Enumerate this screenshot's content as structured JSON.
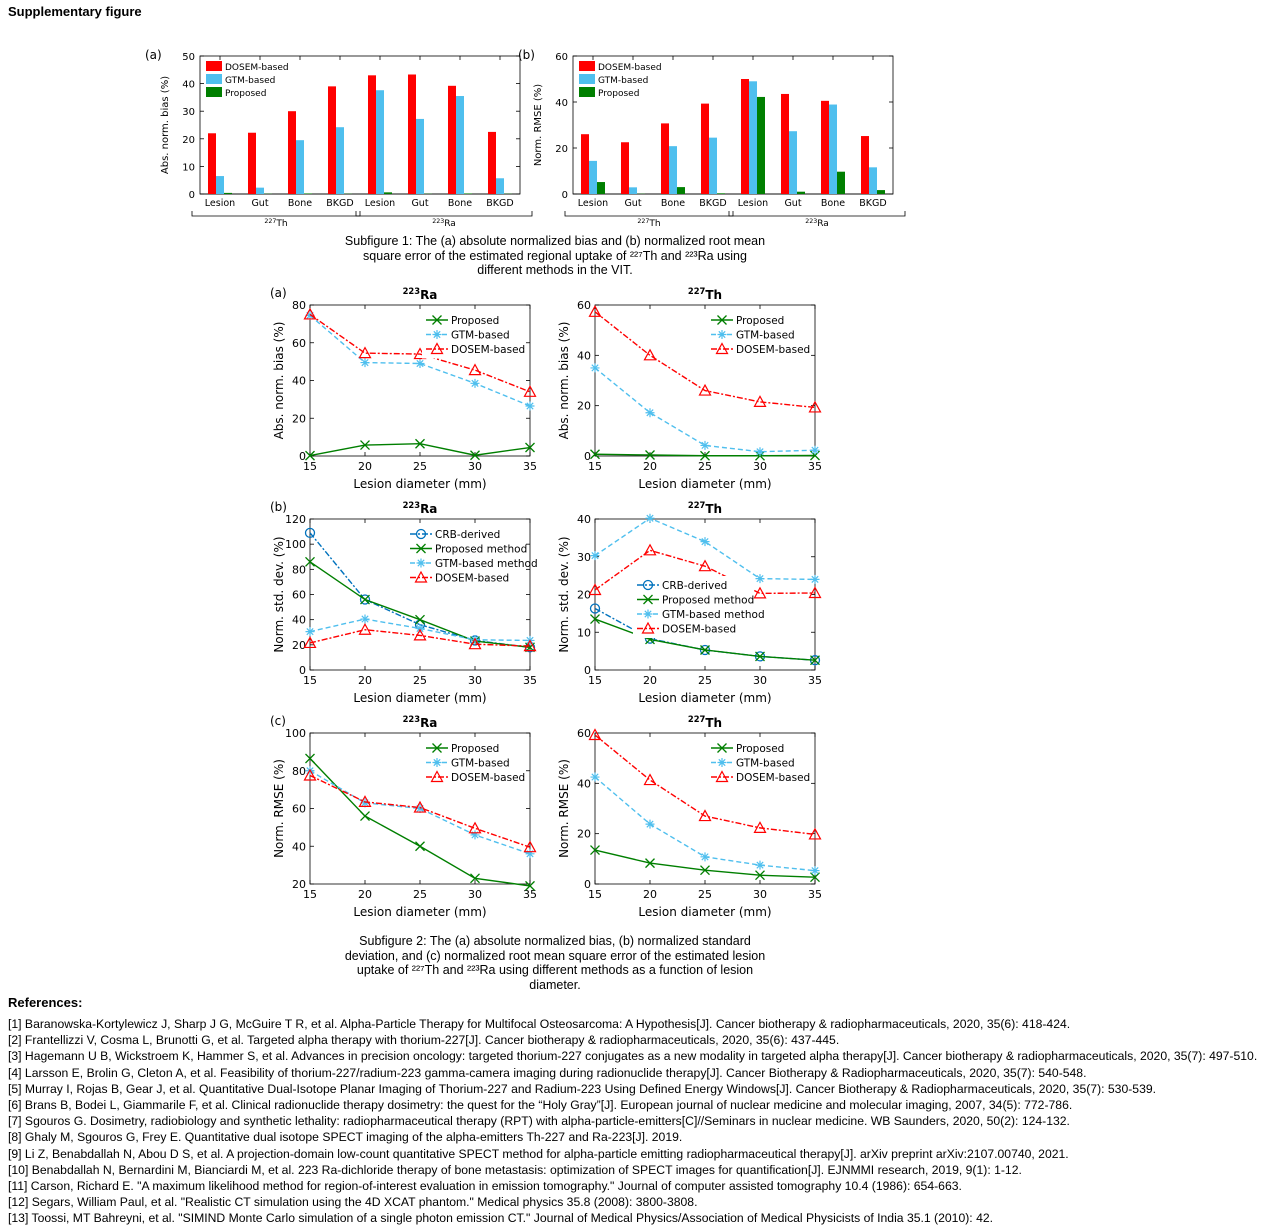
{
  "page": {
    "heading": "Supplementary figure",
    "caption1_lines": [
      "Subfigure 1: The (a) absolute normalized bias and (b) normalized root mean",
      "square error of the estimated regional uptake of ²²⁷Th and ²²³Ra using",
      "different methods in the VIT."
    ],
    "caption2_lines": [
      "Subfigure 2: The (a) absolute normalized bias, (b) normalized standard",
      "deviation, and (c) normalized root mean square error of the estimated lesion",
      "uptake of ²²⁷Th and ²²³Ra using different methods as a function of lesion",
      "diameter."
    ],
    "references_heading": "References:",
    "references": [
      "[1] Baranowska-Kortylewicz J, Sharp J G, McGuire T R, et al. Alpha-Particle Therapy for Multifocal Osteosarcoma: A Hypothesis[J]. Cancer biotherapy & radiopharmaceuticals, 2020, 35(6): 418-424.",
      "[2] Frantellizzi V, Cosma L, Brunotti G, et al. Targeted alpha therapy with thorium-227[J]. Cancer biotherapy & radiopharmaceuticals, 2020, 35(6): 437-445.",
      "[3] Hagemann U B, Wickstroem K, Hammer S, et al. Advances in precision oncology: targeted thorium-227 conjugates as a new modality in targeted alpha therapy[J]. Cancer biotherapy & radiopharmaceuticals, 2020, 35(7): 497-510.",
      "[4] Larsson E, Brolin G, Cleton A, et al. Feasibility of thorium-227/radium-223 gamma-camera imaging during radionuclide therapy[J]. Cancer Biotherapy & Radiopharmaceuticals, 2020, 35(7): 540-548.",
      "[5] Murray I, Rojas B, Gear J, et al. Quantitative Dual-Isotope Planar Imaging of Thorium-227 and Radium-223 Using Defined Energy Windows[J]. Cancer Biotherapy & Radiopharmaceuticals, 2020, 35(7): 530-539.",
      "[6] Brans B, Bodei L, Giammarile F, et al. Clinical radionuclide therapy dosimetry: the quest for the “Holy Gray”[J]. European journal of nuclear medicine and molecular imaging, 2007, 34(5): 772-786.",
      "[7] Sgouros G. Dosimetry, radiobiology and synthetic lethality: radiopharmaceutical therapy (RPT) with alpha-particle-emitters[C]//Seminars in nuclear medicine. WB Saunders, 2020, 50(2): 124-132.",
      "[8] Ghaly M, Sgouros G, Frey E. Quantitative dual isotope SPECT imaging of the alpha-emitters Th-227 and Ra-223[J]. 2019.",
      "[9] Li Z, Benabdallah N, Abou D S, et al. A projection-domain low-count quantitative SPECT method for alpha-particle emitting radiopharmaceutical therapy[J]. arXiv preprint arXiv:2107.00740, 2021.",
      "[10] Benabdallah N, Bernardini M, Bianciardi M, et al. 223 Ra-dichloride therapy of bone metastasis: optimization of SPECT images for quantification[J]. EJNMMI research, 2019, 9(1): 1-12.",
      "[11] Carson, Richard E. \"A maximum likelihood method for region-of-interest evaluation in emission tomography.\" Journal of computer assisted tomography 10.4 (1986): 654-663.",
      "[12] Segars, William Paul, et al. \"Realistic CT simulation using the 4D XCAT phantom.\" Medical physics 35.8 (2008): 3800-3808.",
      "[13] Toossi, MT Bahreyni, et al. \"SIMIND Monte Carlo simulation of a single photon emission CT.\" Journal of Medical Physics/Association of Medical Physicists of India 35.1 (2010): 42."
    ]
  },
  "chart_data": [
    {
      "type": "bar",
      "panel": "(a)",
      "ylabel": "Abs. norm. bias (%)",
      "ylim": [
        0,
        50
      ],
      "yticks": [
        0,
        10,
        20,
        30,
        40,
        50
      ],
      "categories": [
        "Lesion",
        "Gut",
        "Bone",
        "BKGD",
        "Lesion",
        "Gut",
        "Bone",
        "BKGD"
      ],
      "groups": [
        {
          "label": "227",
          "suffix": "Th"
        },
        {
          "label": "223",
          "suffix": "Ra"
        }
      ],
      "legend_position": "top-left",
      "series": [
        {
          "name": "DOSEM-based",
          "color": "#ff0000",
          "values": [
            22,
            22.2,
            30,
            39,
            43,
            43.3,
            39.2,
            22.5
          ]
        },
        {
          "name": "GTM-based",
          "color": "#4fbfee",
          "values": [
            6.5,
            2.3,
            19.5,
            24.2,
            37.6,
            27.2,
            35.5,
            5.7
          ]
        },
        {
          "name": "Proposed",
          "color": "#007f00",
          "values": [
            0.4,
            0.1,
            0.2,
            0.1,
            0.6,
            0.1,
            0.2,
            0.1
          ]
        }
      ]
    },
    {
      "type": "bar",
      "panel": "(b)",
      "ylabel": "Norm. RMSE (%)",
      "ylim": [
        0,
        60
      ],
      "yticks": [
        0,
        20,
        40,
        60
      ],
      "categories": [
        "Lesion",
        "Gut",
        "Bone",
        "BKGD",
        "Lesion",
        "Gut",
        "Bone",
        "BKGD"
      ],
      "groups": [
        {
          "label": "227",
          "suffix": "Th"
        },
        {
          "label": "223",
          "suffix": "Ra"
        }
      ],
      "legend_position": "top-left",
      "series": [
        {
          "name": "DOSEM-based",
          "color": "#ff0000",
          "values": [
            26,
            22.5,
            30.7,
            39.3,
            50,
            43.5,
            40.5,
            25.2
          ]
        },
        {
          "name": "GTM-based",
          "color": "#4fbfee",
          "values": [
            14.4,
            2.9,
            20.8,
            24.5,
            49,
            27.3,
            38.9,
            11.6
          ]
        },
        {
          "name": "Proposed",
          "color": "#007f00",
          "values": [
            5.2,
            0.1,
            3,
            0.3,
            42.2,
            1,
            9.7,
            1.7
          ]
        }
      ]
    },
    {
      "type": "line",
      "panel": "(a)",
      "title": "223",
      "title_suffix": "Ra",
      "xlabel": "Lesion diameter (mm)",
      "ylabel": "Abs. norm. bias (%)",
      "x": [
        15,
        20,
        25,
        30,
        35
      ],
      "xlim": [
        15,
        35
      ],
      "ylim": [
        0,
        80
      ],
      "yticks": [
        0,
        20,
        40,
        60,
        80
      ],
      "legend_position": "top-right",
      "series": [
        {
          "name": "Proposed",
          "color": "#007f00",
          "dash": "solid",
          "marker": "x",
          "values": [
            0.2,
            5.8,
            6.5,
            0.4,
            4.5
          ]
        },
        {
          "name": "GTM-based",
          "color": "#4fbfee",
          "dash": "dashed",
          "marker": "star",
          "values": [
            74.5,
            49.5,
            49,
            38.5,
            26.5
          ]
        },
        {
          "name": "DOSEM-based",
          "color": "#ff0000",
          "dash": "dashdot",
          "marker": "triangle",
          "values": [
            75,
            54.5,
            54,
            45.5,
            34
          ]
        }
      ]
    },
    {
      "type": "line",
      "panel": "",
      "title": "227",
      "title_suffix": "Th",
      "xlabel": "Lesion diameter (mm)",
      "ylabel": "Abs. norm. bias (%)",
      "x": [
        15,
        20,
        25,
        30,
        35
      ],
      "xlim": [
        15,
        35
      ],
      "ylim": [
        0,
        60
      ],
      "yticks": [
        0,
        20,
        40,
        60
      ],
      "legend_position": "top-right",
      "series": [
        {
          "name": "Proposed",
          "color": "#007f00",
          "dash": "solid",
          "marker": "x",
          "values": [
            0.7,
            0.4,
            0.1,
            0.1,
            0.2
          ]
        },
        {
          "name": "GTM-based",
          "color": "#4fbfee",
          "dash": "dashed",
          "marker": "star",
          "values": [
            35,
            17.2,
            4.2,
            1.7,
            2.3
          ]
        },
        {
          "name": "DOSEM-based",
          "color": "#ff0000",
          "dash": "dashdot",
          "marker": "triangle",
          "values": [
            57.3,
            40,
            26,
            21.5,
            19.3
          ]
        }
      ]
    },
    {
      "type": "line",
      "panel": "(b)",
      "title": "223",
      "title_suffix": "Ra",
      "xlabel": "Lesion diameter (mm)",
      "ylabel": "Norm. std. dev. (%)",
      "x": [
        15,
        20,
        25,
        30,
        35
      ],
      "xlim": [
        15,
        35
      ],
      "ylim": [
        0,
        120
      ],
      "yticks": [
        0,
        20,
        40,
        60,
        80,
        100,
        120
      ],
      "legend_position": "top-right",
      "series": [
        {
          "name": "CRB-derived",
          "color": "#0072bd",
          "dash": "dashdot",
          "marker": "circle",
          "values": [
            109,
            56,
            36,
            23.5,
            18
          ]
        },
        {
          "name": "Proposed method",
          "color": "#007f00",
          "dash": "solid",
          "marker": "x",
          "values": [
            86,
            56,
            40,
            23,
            18
          ]
        },
        {
          "name": "GTM-based method",
          "color": "#4fbfee",
          "dash": "dashed",
          "marker": "star",
          "values": [
            30.5,
            40.5,
            33,
            24,
            23.5
          ]
        },
        {
          "name": "DOSEM-based",
          "color": "#ff0000",
          "dash": "dashdot",
          "marker": "triangle",
          "values": [
            21.5,
            32,
            27.5,
            20.5,
            19
          ]
        }
      ]
    },
    {
      "type": "line",
      "panel": "",
      "title": "227",
      "title_suffix": "Th",
      "xlabel": "Lesion diameter (mm)",
      "ylabel": "Norm. std. dev. (%)",
      "x": [
        15,
        20,
        25,
        30,
        35
      ],
      "xlim": [
        15,
        35
      ],
      "ylim": [
        0,
        40
      ],
      "yticks": [
        0,
        10,
        20,
        30,
        40
      ],
      "legend_position": "center",
      "series": [
        {
          "name": "CRB-derived",
          "color": "#0072bd",
          "dash": "dashdot",
          "marker": "circle",
          "values": [
            16.3,
            8.3,
            5.3,
            3.6,
            2.6
          ]
        },
        {
          "name": "Proposed method",
          "color": "#007f00",
          "dash": "solid",
          "marker": "x",
          "values": [
            13.5,
            8.1,
            5.3,
            3.6,
            2.6
          ]
        },
        {
          "name": "GTM-based method",
          "color": "#4fbfee",
          "dash": "dashed",
          "marker": "star",
          "values": [
            30.3,
            40.2,
            34,
            24.2,
            24
          ]
        },
        {
          "name": "DOSEM-based",
          "color": "#ff0000",
          "dash": "dashdot",
          "marker": "triangle",
          "values": [
            21.2,
            31.7,
            27.5,
            20.3,
            20.4
          ]
        }
      ]
    },
    {
      "type": "line",
      "panel": "(c)",
      "title": "223",
      "title_suffix": "Ra",
      "xlabel": "Lesion diameter (mm)",
      "ylabel": "Norm. RMSE (%)",
      "x": [
        15,
        20,
        25,
        30,
        35
      ],
      "xlim": [
        15,
        35
      ],
      "ylim": [
        20,
        100
      ],
      "yticks": [
        20,
        40,
        60,
        80,
        100
      ],
      "legend_position": "top-right",
      "series": [
        {
          "name": "Proposed",
          "color": "#007f00",
          "dash": "solid",
          "marker": "x",
          "values": [
            86.5,
            56,
            40,
            23,
            19
          ]
        },
        {
          "name": "GTM-based",
          "color": "#4fbfee",
          "dash": "dashed",
          "marker": "star",
          "values": [
            80,
            63,
            60,
            46,
            36
          ]
        },
        {
          "name": "DOSEM-based",
          "color": "#ff0000",
          "dash": "dashdot",
          "marker": "triangle",
          "values": [
            77.5,
            63.5,
            60.5,
            49.5,
            39.5
          ]
        }
      ]
    },
    {
      "type": "line",
      "panel": "",
      "title": "227",
      "title_suffix": "Th",
      "xlabel": "Lesion diameter (mm)",
      "ylabel": "Norm. RMSE (%)",
      "x": [
        15,
        20,
        25,
        30,
        35
      ],
      "xlim": [
        15,
        35
      ],
      "ylim": [
        0,
        60
      ],
      "yticks": [
        0,
        20,
        40,
        60
      ],
      "legend_position": "top-right",
      "series": [
        {
          "name": "Proposed",
          "color": "#007f00",
          "dash": "solid",
          "marker": "x",
          "values": [
            13.5,
            8.3,
            5.5,
            3.5,
            2.7
          ]
        },
        {
          "name": "GTM-based",
          "color": "#4fbfee",
          "dash": "dashed",
          "marker": "star",
          "values": [
            42.5,
            23.8,
            10.8,
            7.5,
            5.3
          ]
        },
        {
          "name": "DOSEM-based",
          "color": "#ff0000",
          "dash": "dashdot",
          "marker": "triangle",
          "values": [
            59.2,
            41.3,
            27,
            22.3,
            19.7
          ]
        }
      ]
    }
  ]
}
